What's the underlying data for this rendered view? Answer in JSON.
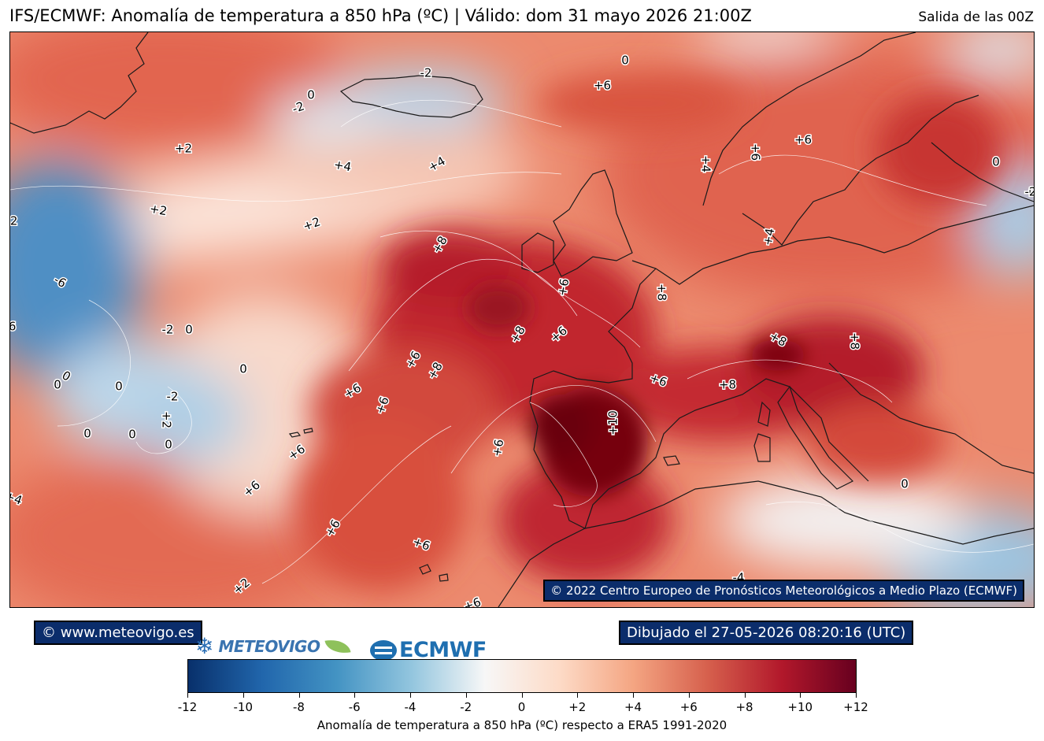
{
  "header": {
    "title": "IFS/ECMWF: Anomalía de temperatura a 850 hPa (ºC) | Válido: dom 31 mayo 2026 21:00Z",
    "run": "Salida de las 00Z"
  },
  "map": {
    "copyright": "© 2022 Centro Europeo de Pronósticos Meteorológicos a Medio Plazo (ECMWF)",
    "contour_labels": [
      "+2",
      "+4",
      "+4",
      "+2",
      "+2",
      "-2",
      "-2",
      "0",
      "0",
      "+6",
      "0",
      "+6",
      "+4",
      "+6",
      "0",
      "-2",
      "-6",
      "-6",
      "-2",
      "0",
      "0",
      "0",
      "0",
      "0",
      "0",
      "-2",
      "+2",
      "0",
      "0",
      "+8",
      "+8",
      "+6",
      "+6",
      "+8",
      "+6",
      "+6",
      "+6",
      "+6",
      "+6",
      "+8",
      "+10",
      "+6",
      "+8",
      "+8",
      "+8",
      "+6",
      "+6",
      "+6",
      "+2",
      "+6",
      "0",
      "-4",
      "+4",
      "-2",
      "+4",
      "+6"
    ]
  },
  "footer": {
    "site": "© www.meteovigo.es",
    "drawn": "Dibujado el 27-05-2026 08:20:16 (UTC)",
    "logo_meteovigo": "METEOVIGO",
    "logo_ecmwf": "ECMWF"
  },
  "colorbar": {
    "ticks": [
      "-12",
      "-10",
      "-8",
      "-6",
      "-4",
      "-2",
      "0",
      "+2",
      "+4",
      "+6",
      "+8",
      "+10",
      "+12"
    ],
    "range": [
      -12,
      12
    ],
    "colors": [
      "#08306b",
      "#2166ac",
      "#4393c3",
      "#92c5de",
      "#f7f7f7",
      "#fddbc7",
      "#f4a582",
      "#d6604d",
      "#b2182b",
      "#67001f"
    ],
    "label": "Anomalía de temperatura a 850 hPa (ºC) respecto a ERA5 1991-2020"
  }
}
